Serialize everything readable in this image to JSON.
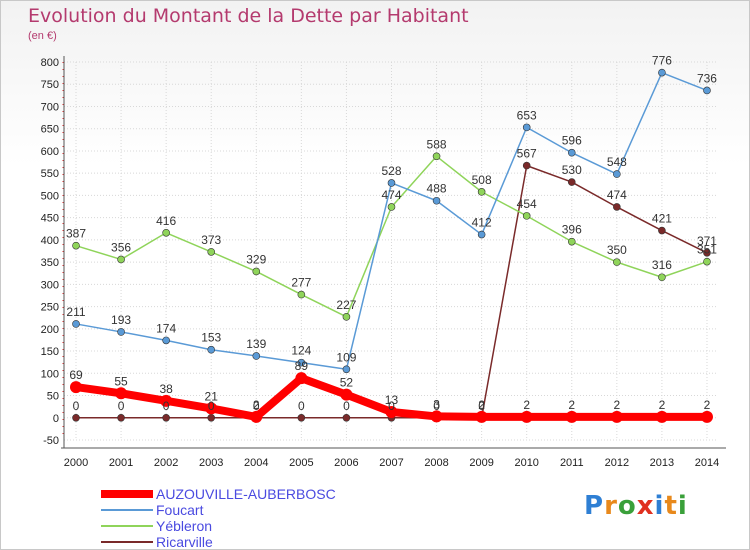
{
  "title": "Evolution du Montant de la Dette par Habitant",
  "subtitle": "(en €)",
  "logo": {
    "letters": [
      "P",
      "r",
      "o",
      "x",
      "i",
      "t",
      "i"
    ],
    "colors": [
      "#2e7fd4",
      "#e8891c",
      "#3aa03a",
      "#e03020",
      "#2e7fd4",
      "#e8891c",
      "#3aa03a"
    ]
  },
  "chart_data": {
    "type": "line",
    "title": "Evolution du Montant de la Dette par Habitant",
    "ylabel": "(en €)",
    "xlabel": "",
    "ylim": [
      -50,
      800
    ],
    "yticks": [
      -50,
      0,
      50,
      100,
      150,
      200,
      250,
      300,
      350,
      400,
      450,
      500,
      550,
      600,
      650,
      700,
      750,
      800
    ],
    "grid": true,
    "legend_position": "bottom-left",
    "x": [
      "2000",
      "2001",
      "2002",
      "2003",
      "2004",
      "2005",
      "2006",
      "2007",
      "2008",
      "2009",
      "2010",
      "2011",
      "2012",
      "2013",
      "2014"
    ],
    "series": [
      {
        "name": "AUZOUVILLE-AUBERBOSC",
        "color": "#ff0000",
        "width": 8,
        "marker": 6,
        "values": [
          69,
          55,
          38,
          21,
          2,
          89,
          52,
          13,
          3,
          2,
          2,
          2,
          2,
          2,
          2
        ]
      },
      {
        "name": "Foucart",
        "color": "#5a9ad6",
        "width": 1.5,
        "marker": 3.5,
        "values": [
          211,
          193,
          174,
          153,
          139,
          124,
          109,
          528,
          488,
          412,
          653,
          596,
          548,
          776,
          736
        ]
      },
      {
        "name": "Yébleron",
        "color": "#8fd45a",
        "width": 1.5,
        "marker": 3.5,
        "values": [
          387,
          356,
          416,
          373,
          329,
          277,
          227,
          474,
          588,
          508,
          454,
          396,
          350,
          316,
          351
        ]
      },
      {
        "name": "Ricarville",
        "color": "#7a2a2a",
        "width": 1.5,
        "marker": 3.5,
        "values": [
          0,
          0,
          0,
          0,
          0,
          0,
          0,
          0,
          0,
          0,
          567,
          530,
          474,
          421,
          371
        ]
      }
    ]
  }
}
